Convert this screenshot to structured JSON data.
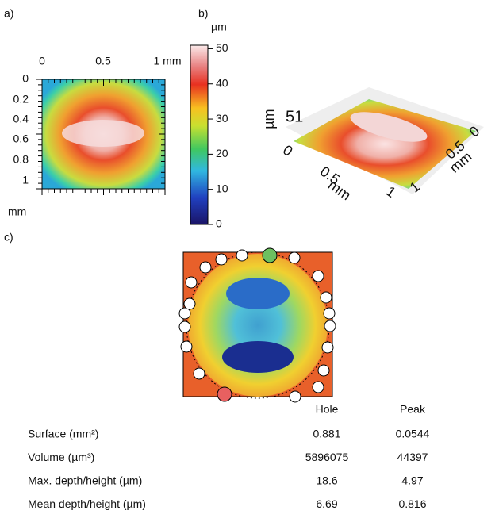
{
  "panel_a": {
    "label": "a)",
    "x_ticks": [
      "0",
      "0.5",
      "1 mm"
    ],
    "y_ticks": [
      "0",
      "0.2",
      "0.4",
      "0.6",
      "0.8",
      "1"
    ],
    "y_unit": "mm"
  },
  "colorbar": {
    "unit": "µm",
    "ticks": [
      0,
      10,
      20,
      30,
      40,
      50
    ],
    "lim": [
      0,
      51
    ]
  },
  "panel_b": {
    "label": "b)",
    "z_max": "51",
    "z_unit": "µm",
    "x_labels": [
      "0",
      "0.5",
      "1",
      "mm"
    ],
    "y_labels": [
      "0",
      "0.5",
      "1",
      "mm"
    ]
  },
  "panel_c": {
    "label": "c)",
    "table": {
      "header": [
        "Hole",
        "Peak"
      ],
      "rows": [
        [
          "Surface (mm²)",
          "0.881",
          "0.0544"
        ],
        [
          "Volume (µm³)",
          "5896075",
          "44397"
        ],
        [
          "Max. depth/height (µm)",
          "18.6",
          "4.97"
        ],
        [
          "Mean depth/height (µm)",
          "6.69",
          "0.816"
        ]
      ]
    }
  }
}
